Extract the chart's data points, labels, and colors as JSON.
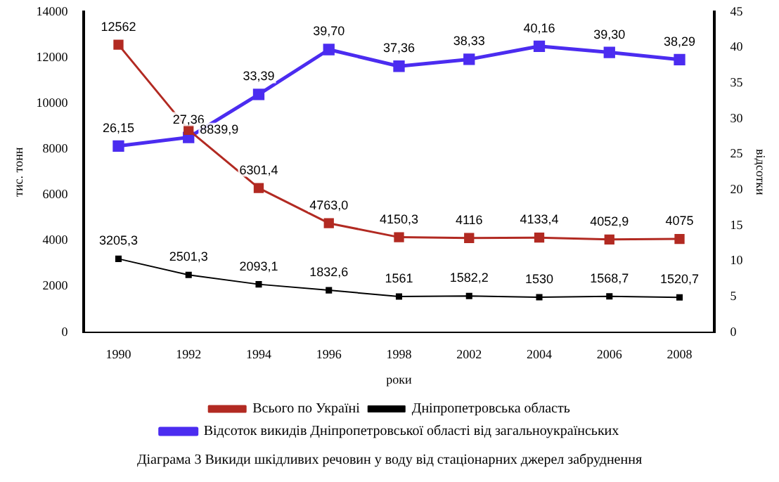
{
  "chart_data": {
    "type": "line",
    "xlabel": "роки",
    "ylabel": "тис. тонн",
    "y2label": "відсотки",
    "categories": [
      "1990",
      "1992",
      "1994",
      "1996",
      "1998",
      "2002",
      "2004",
      "2006",
      "2008"
    ],
    "series": [
      {
        "name": "Всього по Україні",
        "color": "#b22a22",
        "values": [
          12562,
          8839.9,
          6301.4,
          4763.0,
          4150.3,
          4116,
          4133.4,
          4052.9,
          4075
        ],
        "value_labels": [
          "12562",
          "8839,9",
          "6301,4",
          "4763,0",
          "4150,3",
          "4116",
          "4133,4",
          "4052,9",
          "4075"
        ]
      },
      {
        "name": "Дніпропетровська область",
        "color": "#000000",
        "values": [
          3205.3,
          2501.3,
          2093.1,
          1832.6,
          1561,
          1582.2,
          1530,
          1568.7,
          1520.7
        ],
        "value_labels": [
          "3205,3",
          "2501,3",
          "2093,1",
          "1832,6",
          "1561",
          "1582,2",
          "1530",
          "1568,7",
          "1520,7"
        ]
      },
      {
        "name": "Відсоток викидів Дніпропетровської області від загальноукраїнських",
        "color": "#4b2cf0",
        "axis": "y2",
        "values": [
          26.15,
          27.36,
          33.39,
          39.7,
          37.36,
          38.33,
          40.16,
          39.3,
          38.29
        ],
        "value_labels": [
          "26,15",
          "27,36",
          "33,39",
          "39,70",
          "37,36",
          "38,33",
          "40,16",
          "39,30",
          "38,29"
        ]
      }
    ],
    "ylim": [
      0,
      14000
    ],
    "yticks": [
      0,
      2000,
      4000,
      6000,
      8000,
      10000,
      12000,
      14000
    ],
    "y2lim": [
      0,
      45
    ],
    "y2ticks": [
      0,
      5,
      10,
      15,
      20,
      25,
      30,
      35,
      40,
      45
    ],
    "grid": false,
    "legend": "bottom",
    "marker": "square",
    "line_style": "solid",
    "annotations": [
      "Діаграма 3 Викиди шкідливих речовин у воду від стаціонарних джерел забруднення"
    ]
  }
}
